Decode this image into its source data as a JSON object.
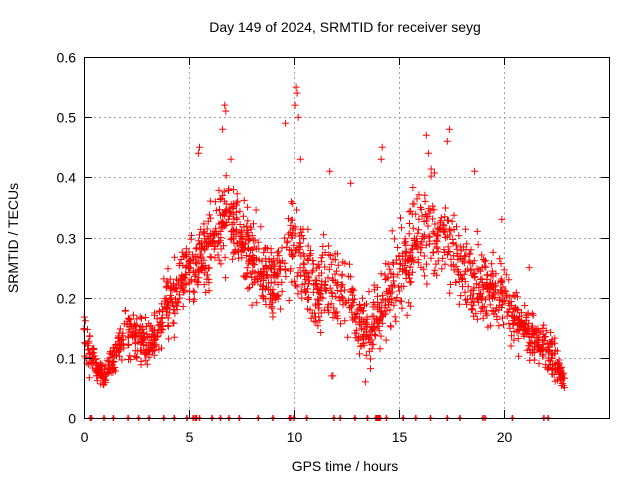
{
  "chart_data": {
    "type": "scatter",
    "title": "Day 149 of 2024, SRMTID for receiver seyg",
    "xlabel": "GPS time / hours",
    "ylabel": "SRMTID / TECUs",
    "xlim": [
      0,
      25
    ],
    "ylim": [
      0,
      0.6
    ],
    "xticks": [
      0,
      5,
      10,
      15,
      20
    ],
    "xtick_labels": [
      "0",
      "5",
      "10",
      "15",
      "20"
    ],
    "yticks": [
      0,
      0.1,
      0.2,
      0.3,
      0.4,
      0.5,
      0.6
    ],
    "ytick_labels": [
      "0",
      "0.1",
      "0.2",
      "0.3",
      "0.4",
      "0.5",
      "0.6"
    ],
    "grid": true,
    "marker": "+",
    "color": "#ff0000",
    "trend_x": [
      0,
      0.3,
      0.6,
      1.0,
      1.5,
      2.0,
      2.5,
      3.0,
      3.5,
      4.0,
      4.5,
      5.0,
      5.5,
      6.0,
      6.5,
      7.0,
      7.5,
      8.0,
      8.5,
      9.0,
      9.5,
      10.0,
      10.5,
      11.0,
      11.5,
      12.0,
      12.5,
      13.0,
      13.5,
      14.0,
      14.5,
      15.0,
      15.5,
      16.0,
      16.5,
      17.0,
      17.5,
      18.0,
      18.5,
      19.0,
      19.5,
      20.0,
      20.5,
      21.0,
      21.5,
      22.0,
      22.5,
      22.9
    ],
    "trend_y": [
      0.15,
      0.11,
      0.08,
      0.07,
      0.1,
      0.15,
      0.13,
      0.12,
      0.14,
      0.19,
      0.21,
      0.25,
      0.26,
      0.29,
      0.32,
      0.33,
      0.3,
      0.27,
      0.24,
      0.23,
      0.26,
      0.3,
      0.24,
      0.2,
      0.22,
      0.23,
      0.2,
      0.17,
      0.15,
      0.17,
      0.21,
      0.24,
      0.27,
      0.3,
      0.31,
      0.3,
      0.28,
      0.25,
      0.23,
      0.22,
      0.21,
      0.2,
      0.17,
      0.15,
      0.13,
      0.12,
      0.09,
      0.06
    ],
    "spread": [
      0.04,
      0.04,
      0.02,
      0.02,
      0.03,
      0.04,
      0.04,
      0.04,
      0.04,
      0.05,
      0.05,
      0.05,
      0.06,
      0.06,
      0.07,
      0.07,
      0.06,
      0.06,
      0.05,
      0.06,
      0.07,
      0.08,
      0.07,
      0.06,
      0.06,
      0.06,
      0.06,
      0.05,
      0.05,
      0.06,
      0.06,
      0.07,
      0.07,
      0.07,
      0.07,
      0.07,
      0.06,
      0.06,
      0.06,
      0.06,
      0.05,
      0.05,
      0.05,
      0.04,
      0.04,
      0.04,
      0.03,
      0.02
    ],
    "n_points": 1800,
    "outliers": [
      {
        "x": 6.7,
        "y": 0.52
      },
      {
        "x": 6.75,
        "y": 0.51
      },
      {
        "x": 6.6,
        "y": 0.48
      },
      {
        "x": 10.1,
        "y": 0.55
      },
      {
        "x": 10.15,
        "y": 0.54
      },
      {
        "x": 10.05,
        "y": 0.52
      },
      {
        "x": 10.2,
        "y": 0.5
      },
      {
        "x": 9.6,
        "y": 0.49
      },
      {
        "x": 10.3,
        "y": 0.43
      },
      {
        "x": 5.5,
        "y": 0.45
      },
      {
        "x": 5.45,
        "y": 0.44
      },
      {
        "x": 7.0,
        "y": 0.43
      },
      {
        "x": 14.2,
        "y": 0.45
      },
      {
        "x": 14.15,
        "y": 0.43
      },
      {
        "x": 16.3,
        "y": 0.47
      },
      {
        "x": 16.4,
        "y": 0.44
      },
      {
        "x": 17.4,
        "y": 0.48
      },
      {
        "x": 17.3,
        "y": 0.46
      },
      {
        "x": 18.6,
        "y": 0.41
      },
      {
        "x": 11.7,
        "y": 0.41
      },
      {
        "x": 12.7,
        "y": 0.39
      },
      {
        "x": 11.8,
        "y": 0.07
      },
      {
        "x": 11.85,
        "y": 0.07
      },
      {
        "x": 13.4,
        "y": 0.06
      },
      {
        "x": 19.9,
        "y": 0.33
      },
      {
        "x": 21.2,
        "y": 0.25
      }
    ],
    "zero_marks_x": [
      0.3,
      0.35,
      0.95,
      1.4,
      2.1,
      2.6,
      3.1,
      3.8,
      4.3,
      4.9,
      5.2,
      5.3,
      5.35,
      5.5,
      6.1,
      6.5,
      6.9,
      7.4,
      8.3,
      9.0,
      9.8,
      9.85,
      10.0,
      10.6,
      11.9,
      12.2,
      12.9,
      13.5,
      13.9,
      13.95,
      14.0,
      14.05,
      14.1,
      14.4,
      15.2,
      15.8,
      16.5,
      17.3,
      17.9,
      19.0,
      19.1,
      20.4,
      21.9,
      22.1
    ]
  }
}
